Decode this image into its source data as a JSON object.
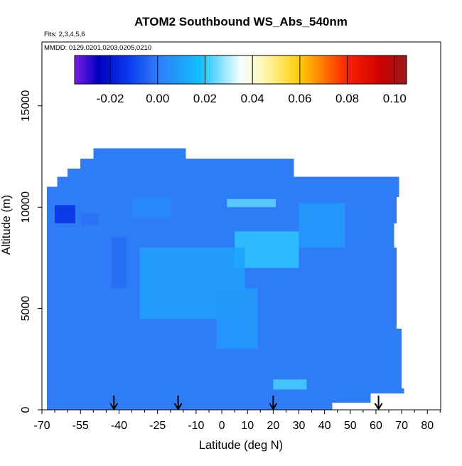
{
  "chart_data": {
    "type": "heatmap",
    "title": "ATOM2 Southbound WS_Abs_540nm",
    "subtitle_flights": "Flts: 2,3,4,5,6",
    "subtitle_dates": "MMDD: 0129,0201,0203,0205,0210",
    "xlabel": "Latitude (deg N)",
    "ylabel": "Altitude (m)",
    "xlim": [
      -70,
      85
    ],
    "ylim": [
      0,
      17500
    ],
    "x_ticks": [
      -70,
      -55,
      -40,
      -25,
      -10,
      0,
      10,
      20,
      30,
      40,
      50,
      60,
      70,
      80
    ],
    "x_tick_labels": [
      "-70",
      "-55",
      "-40",
      "-25",
      "-10",
      "0",
      "10",
      "20",
      "30",
      "40",
      "50",
      "60",
      "70",
      "80"
    ],
    "x_minor_ticks": [
      -65,
      -60,
      -50,
      -45,
      -35,
      -30,
      -20,
      -15,
      -5,
      5,
      15,
      25,
      35,
      45,
      55,
      65,
      75,
      85
    ],
    "y_ticks": [
      0,
      5000,
      10000,
      15000
    ],
    "y_tick_labels": [
      "0",
      "5000",
      "10000",
      "15000"
    ],
    "colorbar": {
      "range": [
        -0.035,
        0.105
      ],
      "ticks": [
        -0.02,
        0.0,
        0.02,
        0.04,
        0.06,
        0.08,
        0.1
      ],
      "tick_labels": [
        "-0.02",
        "0.00",
        "0.02",
        "0.04",
        "0.06",
        "0.08",
        "0.10"
      ],
      "stops": [
        {
          "v": -0.035,
          "c": "#7b1fe8"
        },
        {
          "v": -0.025,
          "c": "#0000c0"
        },
        {
          "v": -0.012,
          "c": "#0a3ef0"
        },
        {
          "v": 0.0,
          "c": "#2f7cf7"
        },
        {
          "v": 0.018,
          "c": "#10c0ff"
        },
        {
          "v": 0.035,
          "c": "#f4ffff"
        },
        {
          "v": 0.045,
          "c": "#fff7b0"
        },
        {
          "v": 0.06,
          "c": "#ffcc00"
        },
        {
          "v": 0.08,
          "c": "#ff2000"
        },
        {
          "v": 0.095,
          "c": "#c80000"
        },
        {
          "v": 0.105,
          "c": "#9a1b1b"
        }
      ]
    },
    "background_value": 0.0,
    "data_extent": [
      {
        "lat0": -68,
        "lat1": 43,
        "alt0": 0,
        "alt1": 800
      },
      {
        "lat0": 43,
        "lat1": 58,
        "alt0": 350,
        "alt1": 800
      },
      {
        "lat0": -68,
        "lat1": 71,
        "alt0": 800,
        "alt1": 1050
      },
      {
        "lat0": -68,
        "lat1": 70,
        "alt0": 1050,
        "alt1": 4000
      },
      {
        "lat0": -68,
        "lat1": 68,
        "alt0": 4000,
        "alt1": 8000
      },
      {
        "lat0": -68,
        "lat1": 67,
        "alt0": 8000,
        "alt1": 9200
      },
      {
        "lat0": -68,
        "lat1": 68,
        "alt0": 9200,
        "alt1": 10500
      },
      {
        "lat0": -68,
        "lat1": 69,
        "alt0": 10500,
        "alt1": 11000
      },
      {
        "lat0": -64,
        "lat1": 69,
        "alt0": 11000,
        "alt1": 11500
      },
      {
        "lat0": -60,
        "lat1": 28,
        "alt0": 11500,
        "alt1": 11900
      },
      {
        "lat0": -55,
        "lat1": 28,
        "alt0": 11900,
        "alt1": 12400
      },
      {
        "lat0": -50,
        "lat1": -14,
        "alt0": 12400,
        "alt1": 12900
      }
    ],
    "features": [
      {
        "lat0": -65,
        "lat1": -57,
        "alt0": 9200,
        "alt1": 10100,
        "value": -0.015
      },
      {
        "lat0": -55,
        "lat1": -48,
        "alt0": 9100,
        "alt1": 9700,
        "value": -0.002
      },
      {
        "lat0": -43,
        "lat1": -37,
        "alt0": 6000,
        "alt1": 8500,
        "value": -0.003
      },
      {
        "lat0": 5,
        "lat1": 30,
        "alt0": 7000,
        "alt1": 8800,
        "value": 0.02
      },
      {
        "lat0": 2,
        "lat1": 21,
        "alt0": 10000,
        "alt1": 10400,
        "value": 0.024
      },
      {
        "lat0": 20,
        "lat1": 33,
        "alt0": 1000,
        "alt1": 1500,
        "value": 0.022
      },
      {
        "lat0": -32,
        "lat1": 9,
        "alt0": 4500,
        "alt1": 8000,
        "value": 0.01
      },
      {
        "lat0": -2,
        "lat1": 14,
        "alt0": 3000,
        "alt1": 6000,
        "value": 0.008
      },
      {
        "lat0": 30,
        "lat1": 48,
        "alt0": 8000,
        "alt1": 10200,
        "value": 0.008
      },
      {
        "lat0": -35,
        "lat1": -20,
        "alt0": 9500,
        "alt1": 10500,
        "value": 0.004
      }
    ],
    "arrows": [
      {
        "lat": -42,
        "alt_top": 700
      },
      {
        "lat": -17,
        "alt_top": 700
      },
      {
        "lat": 20,
        "alt_top": 700
      },
      {
        "lat": 61,
        "alt_top": 700
      }
    ]
  }
}
